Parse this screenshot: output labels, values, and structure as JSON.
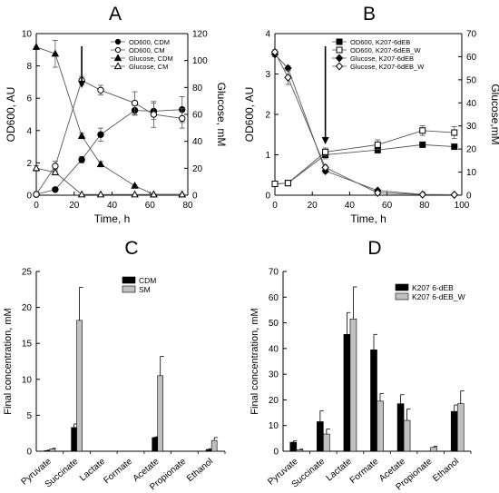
{
  "chart_data": [
    {
      "panel": "A",
      "type": "line",
      "xlabel": "Time, h",
      "ylabel": "OD600, AU",
      "y2label": "Glucose, mM",
      "xlim": [
        0,
        80
      ],
      "ylim": [
        0,
        10
      ],
      "y2lim": [
        0,
        120
      ],
      "xticks": [
        "0",
        "20",
        "40",
        "60",
        "80"
      ],
      "yticks": [
        "0",
        "2",
        "4",
        "6",
        "8",
        "10"
      ],
      "y2ticks": [
        "0",
        "20",
        "40",
        "60",
        "80",
        "100",
        "120"
      ],
      "legend_position": "top-right",
      "arrow_at_x": 24,
      "series": [
        {
          "name": "OD600, CDM",
          "axis": "left",
          "marker": "circle-filled",
          "x": [
            0,
            10,
            24,
            34,
            52,
            62,
            77
          ],
          "y": [
            0.05,
            0.35,
            2.2,
            3.75,
            5.25,
            5.2,
            5.3
          ],
          "err": [
            0.05,
            0.05,
            0.2,
            0.4,
            0.3,
            0.5,
            0.8
          ]
        },
        {
          "name": "OD600, CM",
          "axis": "left",
          "marker": "circle-open",
          "x": [
            0,
            10,
            24,
            34,
            52,
            62,
            77
          ],
          "y": [
            0.05,
            1.8,
            7.1,
            6.5,
            5.7,
            5.0,
            4.75
          ],
          "err": [
            0.05,
            0.3,
            0.25,
            0.3,
            0.7,
            0.8,
            0.6
          ]
        },
        {
          "name": "Glucose, CDM",
          "axis": "right",
          "marker": "triangle-filled",
          "x": [
            0,
            10,
            24,
            34,
            52,
            62,
            77
          ],
          "y": [
            110,
            105,
            44,
            23,
            7,
            0.5,
            0.5
          ],
          "err": [
            0,
            10,
            2,
            2,
            0.5,
            0.5,
            0.5
          ]
        },
        {
          "name": "Glucose, CM",
          "axis": "right",
          "marker": "triangle-open",
          "x": [
            0,
            10,
            24,
            34,
            52,
            62,
            77
          ],
          "y": [
            20,
            17,
            0.5,
            0.5,
            0.5,
            0.5,
            0.5
          ],
          "err": [
            2,
            2,
            0,
            0,
            0,
            0,
            0
          ]
        }
      ]
    },
    {
      "panel": "B",
      "type": "line",
      "xlabel": "Time, h",
      "ylabel": "OD600, AU",
      "y2label": "Glucose,mM",
      "xlim": [
        0,
        100
      ],
      "ylim": [
        0,
        4
      ],
      "y2lim": [
        0,
        70
      ],
      "xticks": [
        "0",
        "20",
        "40",
        "60",
        "80",
        "100"
      ],
      "yticks": [
        "0",
        "1",
        "2",
        "3",
        "4"
      ],
      "y2ticks": [
        "0",
        "10",
        "20",
        "30",
        "40",
        "50",
        "60",
        "70"
      ],
      "legend_position": "top-right",
      "arrow_at_x": 27,
      "series": [
        {
          "name": "OD600, K207-6dEB",
          "axis": "left",
          "marker": "square-filled",
          "x": [
            0,
            7,
            27,
            55,
            79,
            96
          ],
          "y": [
            0.28,
            0.3,
            1.0,
            1.12,
            1.25,
            1.2
          ],
          "err": [
            0.03,
            0.03,
            0.1,
            0.08,
            0.06,
            0.06
          ]
        },
        {
          "name": "OD600, K207-6dEB_W",
          "axis": "left",
          "marker": "square-open",
          "x": [
            0,
            7,
            27,
            55,
            79,
            96
          ],
          "y": [
            0.28,
            0.3,
            1.07,
            1.25,
            1.6,
            1.55
          ],
          "err": [
            0.03,
            0.03,
            0.1,
            0.12,
            0.12,
            0.15
          ]
        },
        {
          "name": "Glucose, K207-6dEB",
          "axis": "right",
          "marker": "diamond-filled",
          "x": [
            0,
            7,
            27,
            55,
            79,
            96
          ],
          "y": [
            61,
            55,
            10.5,
            2,
            0.3,
            0.2
          ],
          "err": [
            1,
            1,
            1,
            0.3,
            0.2,
            0.2
          ]
        },
        {
          "name": "Glucose, K207-6dEB_W",
          "axis": "right",
          "marker": "diamond-open",
          "x": [
            0,
            7,
            27,
            55,
            79,
            96
          ],
          "y": [
            62,
            51,
            12,
            1,
            0.3,
            0.2
          ],
          "err": [
            1,
            3,
            1,
            0.3,
            0.2,
            0.2
          ]
        }
      ]
    },
    {
      "panel": "C",
      "type": "bar",
      "ylabel": "Final concentration, mM",
      "ylim": [
        0,
        25
      ],
      "yticks": [
        "0",
        "5",
        "10",
        "15",
        "20",
        "25"
      ],
      "categories": [
        "Pyruvate",
        "Succinate",
        "Lactate",
        "Formate",
        "Acetate",
        "Propionate",
        "Ethanol"
      ],
      "legend_position": "top-right",
      "series": [
        {
          "name": "CDM",
          "color": "#000000",
          "values": [
            0.1,
            3.3,
            0,
            0,
            1.9,
            0,
            0.25
          ],
          "err": [
            0.05,
            0.5,
            0,
            0,
            0.1,
            0,
            0.1
          ]
        },
        {
          "name": "SM",
          "color": "#c0c0c0",
          "values": [
            0.3,
            18.2,
            0,
            0,
            10.5,
            0,
            1.5
          ],
          "err": [
            0.1,
            4.6,
            0,
            0,
            2.7,
            0,
            0.4
          ]
        }
      ]
    },
    {
      "panel": "D",
      "type": "bar",
      "ylabel": "Final concentration, mM",
      "ylim": [
        0,
        70
      ],
      "yticks": [
        "0",
        "10",
        "20",
        "30",
        "40",
        "50",
        "60",
        "70"
      ],
      "categories": [
        "Pyruvate",
        "Succinate",
        "Lactate",
        "Formate",
        "Acetate",
        "Propionate",
        "Ethanol"
      ],
      "legend_position": "top-right",
      "series": [
        {
          "name": "K207 6-dEB",
          "color": "#000000",
          "values": [
            3.5,
            11.5,
            45.5,
            39.5,
            18.5,
            0,
            15.5
          ],
          "err": [
            0.5,
            4.3,
            8.5,
            6,
            3.5,
            0,
            2.5
          ]
        },
        {
          "name": "K207 6-dEB_W",
          "color": "#c0c0c0",
          "values": [
            0.6,
            6.7,
            51.5,
            19.5,
            12,
            1.5,
            18.5
          ],
          "err": [
            0.2,
            2,
            12.5,
            3,
            4.5,
            0.4,
            5
          ]
        }
      ]
    }
  ]
}
